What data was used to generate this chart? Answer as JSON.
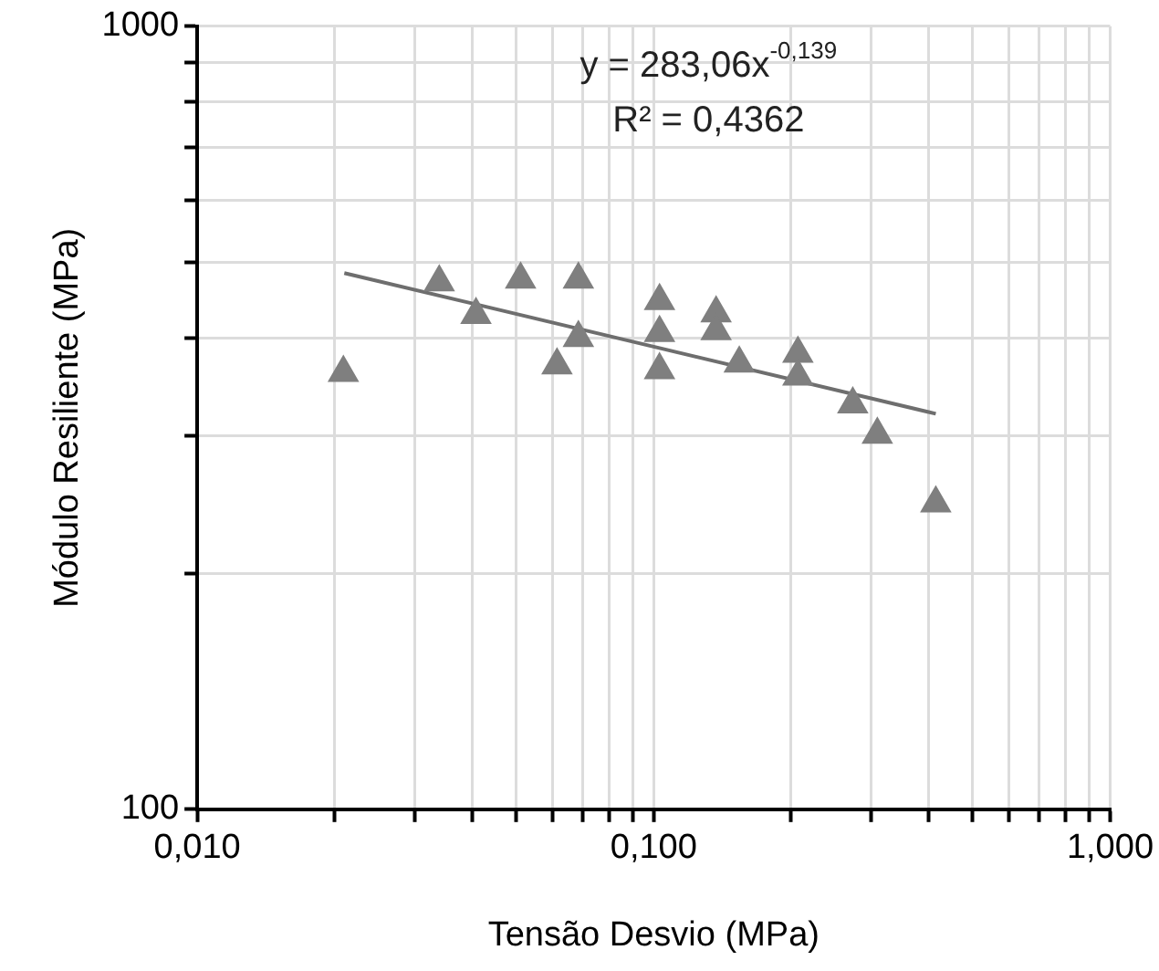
{
  "chart_data": {
    "type": "scatter",
    "xlabel": "Tensão Desvio (MPa)",
    "ylabel": "Módulo Resiliente (MPa)",
    "log": "xy",
    "grid": true,
    "legend": false,
    "marker": "triangle",
    "xlim": [
      0.01,
      1
    ],
    "ylim": [
      100,
      1000
    ],
    "xticks": [
      {
        "value": 0.01,
        "label": "0,010"
      },
      {
        "value": 0.02,
        "label": null
      },
      {
        "value": 0.03,
        "label": null
      },
      {
        "value": 0.04,
        "label": null
      },
      {
        "value": 0.05,
        "label": null
      },
      {
        "value": 0.06,
        "label": null
      },
      {
        "value": 0.07,
        "label": null
      },
      {
        "value": 0.08,
        "label": null
      },
      {
        "value": 0.09,
        "label": null
      },
      {
        "value": 0.1,
        "label": "0,100"
      },
      {
        "value": 0.2,
        "label": null
      },
      {
        "value": 0.3,
        "label": null
      },
      {
        "value": 0.4,
        "label": null
      },
      {
        "value": 0.5,
        "label": null
      },
      {
        "value": 0.6,
        "label": null
      },
      {
        "value": 0.7,
        "label": null
      },
      {
        "value": 0.8,
        "label": null
      },
      {
        "value": 0.9,
        "label": null
      },
      {
        "value": 1,
        "label": "1,000"
      }
    ],
    "yticks": [
      100,
      {
        "value": 200,
        "label": null
      },
      {
        "value": 300,
        "label": null
      },
      {
        "value": 400,
        "label": null
      },
      {
        "value": 500,
        "label": null
      },
      {
        "value": 600,
        "label": null
      },
      {
        "value": 700,
        "label": null
      },
      {
        "value": 800,
        "label": null
      },
      {
        "value": 900,
        "label": null
      },
      1000
    ],
    "series": [
      {
        "color": "#7f7f7f",
        "x": [
          0.0209,
          0.0339,
          0.0408,
          0.0511,
          0.0684,
          0.0614,
          0.0684,
          0.103,
          0.103,
          0.103,
          0.137,
          0.137,
          0.154,
          0.207,
          0.207,
          0.273,
          0.309,
          0.415
        ],
        "values": [
          361,
          471,
          428,
          475,
          475,
          369,
          400,
          446,
          406,
          364,
          430,
          408,
          371,
          382,
          357,
          329,
          301,
          246
        ]
      },
      {
        "type": "line",
        "color": "#6e6e6e",
        "x": [
          0.021,
          0.415
        ],
        "values": [
          484,
          320
        ],
        "marker": "none"
      }
    ],
    "annotations": [
      "y = 283,06x$^{-0,139}$",
      "R² = 0,4362"
    ]
  }
}
